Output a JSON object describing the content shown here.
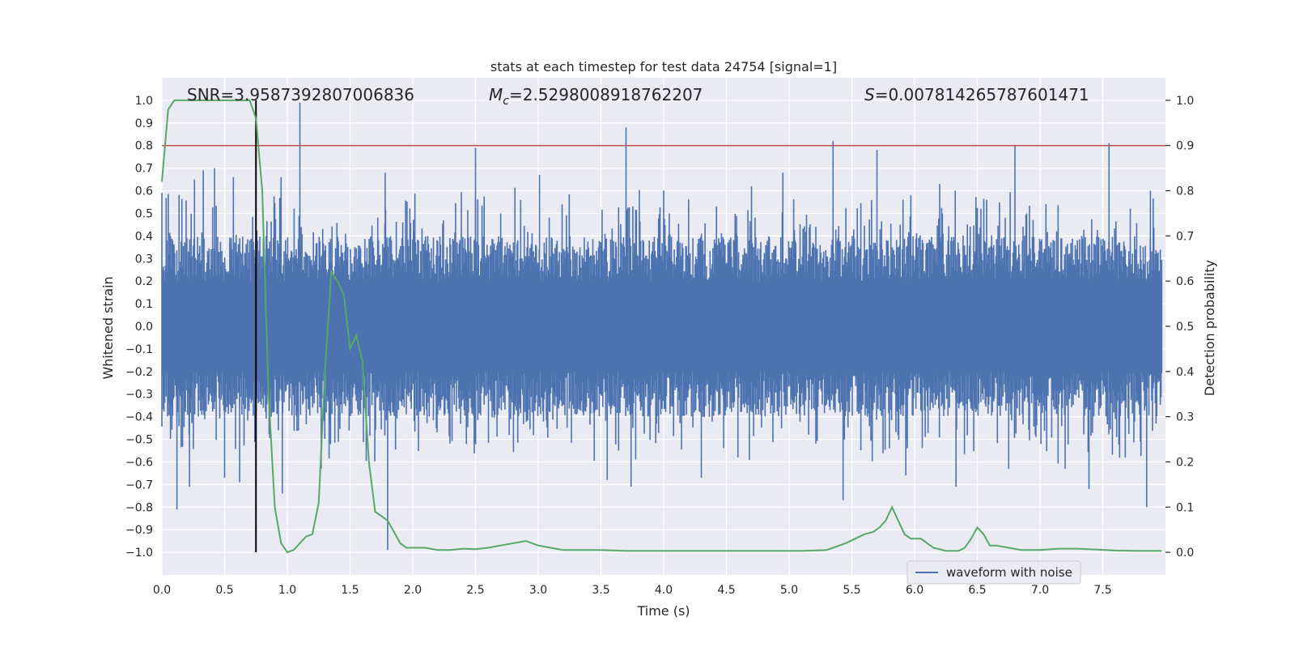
{
  "chart_data": {
    "type": "line",
    "title": "stats at each timestep for test data 24754 [signal=1]",
    "xlabel": "Time (s)",
    "ylabel_left": "Whitened strain",
    "ylabel_right": "Detection probability",
    "xlim": [
      0.0,
      8.0
    ],
    "ylim_left": [
      -1.1,
      1.1
    ],
    "ylim_right": [
      -0.05,
      1.05
    ],
    "x_ticks": [
      0.0,
      0.5,
      1.0,
      1.5,
      2.0,
      2.5,
      3.0,
      3.5,
      4.0,
      4.5,
      5.0,
      5.5,
      6.0,
      6.5,
      7.0,
      7.5
    ],
    "x_tick_labels": [
      "0.0",
      "0.5",
      "1.0",
      "1.5",
      "2.0",
      "2.5",
      "3.0",
      "3.5",
      "4.0",
      "4.5",
      "5.0",
      "5.5",
      "6.0",
      "6.5",
      "7.0",
      "7.5"
    ],
    "y_left_ticks": [
      1.0,
      0.9,
      0.8,
      0.7,
      0.6,
      0.5,
      0.4,
      0.3,
      0.2,
      0.1,
      0.0,
      -0.1,
      -0.2,
      -0.3,
      -0.4,
      -0.5,
      -0.6,
      -0.7,
      -0.8,
      -0.9,
      -1.0
    ],
    "y_left_tick_labels": [
      "1.0",
      "0.9",
      "0.8",
      "0.7",
      "0.6",
      "0.5",
      "0.4",
      "0.3",
      "0.2",
      "0.1",
      "0.0",
      "−0.1",
      "−0.2",
      "−0.3",
      "−0.4",
      "−0.5",
      "−0.6",
      "−0.7",
      "−0.8",
      "−0.9",
      "−1.0"
    ],
    "y_right_ticks": [
      1.0,
      0.9,
      0.8,
      0.7,
      0.6,
      0.5,
      0.4,
      0.3,
      0.2,
      0.1,
      0.0
    ],
    "y_right_tick_labels": [
      "1.0",
      "0.9",
      "0.8",
      "0.7",
      "0.6",
      "0.5",
      "0.4",
      "0.3",
      "0.2",
      "0.1",
      "0.0"
    ],
    "grid": true,
    "legend": {
      "location": "lower-right",
      "entries": [
        {
          "label": "waveform with noise",
          "color": "#4c72b0"
        }
      ]
    },
    "annotations": {
      "snr": "SNR=3.9587392807006836",
      "mc_symbol": "M",
      "mc_subscript": "c",
      "mc_value": "=2.5298008918762207",
      "s_symbol": "S",
      "s_value": "=0.007814265787601471"
    },
    "threshold_line": {
      "axis": "right",
      "value": 0.9,
      "color": "#c44e52"
    },
    "vertical_marker": {
      "x": 0.75,
      "color": "#000000"
    },
    "waveform_series": {
      "name": "waveform with noise",
      "axis": "left",
      "color": "#4c72b0",
      "x_range": [
        0.0,
        7.97
      ],
      "samples": 1400,
      "band_abs_min": 0.2,
      "band_abs_max": 0.4,
      "peaks": [
        {
          "x": 0.12,
          "y": -0.81
        },
        {
          "x": 0.22,
          "y": -0.71
        },
        {
          "x": 0.26,
          "y": 0.65
        },
        {
          "x": 0.33,
          "y": 0.69
        },
        {
          "x": 0.42,
          "y": 0.7
        },
        {
          "x": 0.5,
          "y": -0.67
        },
        {
          "x": 0.57,
          "y": 0.66
        },
        {
          "x": 0.62,
          "y": -0.69
        },
        {
          "x": 0.95,
          "y": 0.66
        },
        {
          "x": 0.96,
          "y": -0.74
        },
        {
          "x": 1.1,
          "y": 0.99
        },
        {
          "x": 1.27,
          "y": -0.63
        },
        {
          "x": 1.78,
          "y": 0.68
        },
        {
          "x": 1.8,
          "y": -0.99
        },
        {
          "x": 2.5,
          "y": 0.79
        },
        {
          "x": 3.01,
          "y": 0.67
        },
        {
          "x": 3.55,
          "y": -0.68
        },
        {
          "x": 3.7,
          "y": 0.88
        },
        {
          "x": 3.74,
          "y": -0.71
        },
        {
          "x": 4.0,
          "y": 0.6
        },
        {
          "x": 4.3,
          "y": -0.67
        },
        {
          "x": 4.7,
          "y": 0.62
        },
        {
          "x": 4.95,
          "y": 0.68
        },
        {
          "x": 5.35,
          "y": 0.82
        },
        {
          "x": 5.43,
          "y": -0.77
        },
        {
          "x": 5.7,
          "y": 0.78
        },
        {
          "x": 5.93,
          "y": -0.66
        },
        {
          "x": 6.2,
          "y": 0.63
        },
        {
          "x": 6.33,
          "y": -0.71
        },
        {
          "x": 6.75,
          "y": -0.63
        },
        {
          "x": 6.8,
          "y": 0.8
        },
        {
          "x": 7.2,
          "y": -0.63
        },
        {
          "x": 7.39,
          "y": -0.72
        },
        {
          "x": 7.55,
          "y": 0.81
        },
        {
          "x": 7.85,
          "y": -0.8
        },
        {
          "x": 7.88,
          "y": 0.6
        }
      ]
    },
    "probability_series": {
      "name": "detection probability",
      "axis": "right",
      "color": "#55a868",
      "x": [
        0.0,
        0.05,
        0.1,
        0.2,
        0.3,
        0.4,
        0.5,
        0.6,
        0.7,
        0.75,
        0.8,
        0.85,
        0.9,
        0.95,
        1.0,
        1.05,
        1.1,
        1.15,
        1.2,
        1.25,
        1.3,
        1.35,
        1.4,
        1.45,
        1.5,
        1.55,
        1.6,
        1.65,
        1.7,
        1.75,
        1.8,
        1.85,
        1.9,
        1.95,
        2.0,
        2.05,
        2.1,
        2.2,
        2.3,
        2.4,
        2.5,
        2.6,
        2.7,
        2.8,
        2.9,
        3.0,
        3.1,
        3.2,
        3.3,
        3.4,
        3.5,
        3.7,
        3.9,
        4.1,
        4.3,
        4.5,
        4.7,
        4.9,
        5.0,
        5.1,
        5.3,
        5.45,
        5.6,
        5.67,
        5.72,
        5.77,
        5.82,
        5.87,
        5.92,
        5.97,
        6.05,
        6.15,
        6.25,
        6.35,
        6.4,
        6.45,
        6.5,
        6.55,
        6.6,
        6.65,
        6.75,
        6.85,
        7.0,
        7.15,
        7.3,
        7.45,
        7.6,
        7.8,
        7.97
      ],
      "y": [
        0.82,
        0.98,
        1.0,
        1.0,
        1.0,
        1.0,
        1.0,
        1.0,
        1.0,
        0.96,
        0.8,
        0.35,
        0.1,
        0.02,
        0.0,
        0.005,
        0.02,
        0.035,
        0.04,
        0.11,
        0.4,
        0.62,
        0.6,
        0.57,
        0.45,
        0.48,
        0.42,
        0.2,
        0.09,
        0.08,
        0.07,
        0.045,
        0.02,
        0.01,
        0.01,
        0.01,
        0.01,
        0.005,
        0.005,
        0.008,
        0.007,
        0.01,
        0.015,
        0.02,
        0.025,
        0.015,
        0.01,
        0.005,
        0.005,
        0.005,
        0.005,
        0.003,
        0.003,
        0.003,
        0.003,
        0.003,
        0.003,
        0.003,
        0.003,
        0.003,
        0.005,
        0.02,
        0.04,
        0.045,
        0.055,
        0.07,
        0.1,
        0.07,
        0.04,
        0.03,
        0.03,
        0.01,
        0.003,
        0.003,
        0.01,
        0.03,
        0.055,
        0.04,
        0.015,
        0.015,
        0.01,
        0.005,
        0.005,
        0.008,
        0.008,
        0.006,
        0.004,
        0.003,
        0.003
      ]
    }
  }
}
